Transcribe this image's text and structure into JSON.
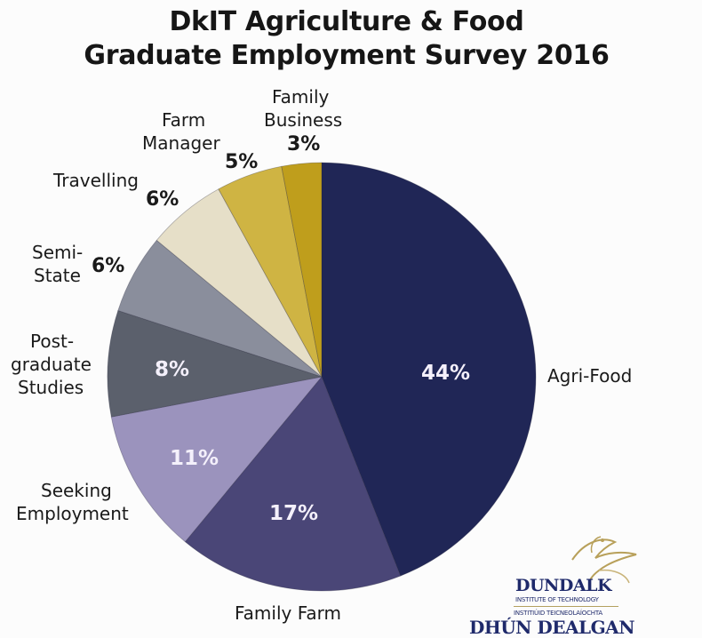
{
  "title": {
    "line1": "DkIT Agriculture & Food",
    "line2": "Graduate Employment Survey 2016"
  },
  "labels": {
    "agri_food": "Agri-Food",
    "family_farm": "Family Farm",
    "seeking_1": "Seeking",
    "seeking_2": "Employment",
    "postgrad_1": "Post-",
    "postgrad_2": "graduate",
    "postgrad_3": "Studies",
    "semi_1": "Semi-",
    "semi_2": "State",
    "travelling": "Travelling",
    "farm_manager_1": "Farm",
    "farm_manager_2": "Manager",
    "family_business_1": "Family",
    "family_business_2": "Business"
  },
  "percents": {
    "agri_food": "44%",
    "family_farm": "17%",
    "seeking": "11%",
    "postgrad": "8%",
    "semi_state": "6%",
    "travelling": "6%",
    "farm_manager": "5%",
    "family_business": "3%"
  },
  "logo": {
    "line1": "DUNDALK",
    "line2": "INSTITUTE OF TECHNOLOGY",
    "line3": "INSTITIÚID TEICNEOLAÍOCHTA",
    "line4": "DHÚN DEALGAN"
  },
  "colors": {
    "agri_food": "#202656",
    "family_farm": "#4a4677",
    "seeking": "#9b93bd",
    "postgrad": "#5b606c",
    "semi_state": "#8a8e9c",
    "travelling": "#e6dfc8",
    "farm_manager": "#cfb443",
    "family_business": "#bf9e1c"
  },
  "chart_data": {
    "type": "pie",
    "title": "DkIT Agriculture & Food Graduate Employment Survey 2016",
    "categories": [
      "Agri-Food",
      "Family Farm",
      "Seeking Employment",
      "Post-graduate Studies",
      "Semi-State",
      "Travelling",
      "Farm Manager",
      "Family Business"
    ],
    "values": [
      44,
      17,
      11,
      8,
      6,
      6,
      5,
      3
    ],
    "unit": "%",
    "start_angle": "12 o'clock",
    "direction": "clockwise",
    "legend": "none (labels placed beside slices)"
  }
}
